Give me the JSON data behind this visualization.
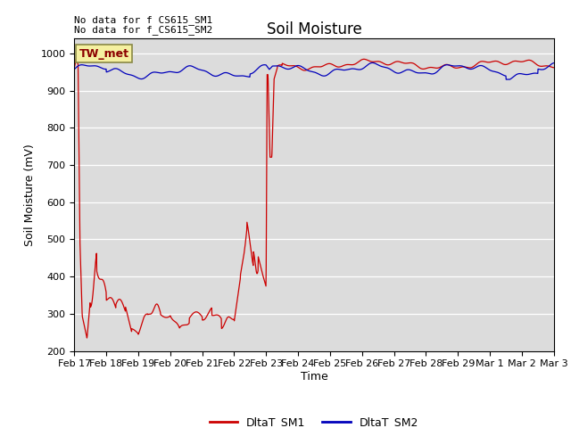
{
  "title": "Soil Moisture",
  "xlabel": "Time",
  "ylabel": "Soil Moisture (mV)",
  "ylim": [
    200,
    1040
  ],
  "yticks": [
    200,
    300,
    400,
    500,
    600,
    700,
    800,
    900,
    1000
  ],
  "bg_color": "#dcdcdc",
  "line1_color": "#cc0000",
  "line2_color": "#0000bb",
  "line1_label": "DltaT_SM1",
  "line2_label": "DltaT_SM2",
  "no_data_text1": "No data for f CS615_SM1",
  "no_data_text2": "No data for f̲CS615̲SM2",
  "tw_met_label": "TW_met",
  "date_labels": [
    "Feb 17",
    "Feb 18",
    "Feb 19",
    "Feb 20",
    "Feb 21",
    "Feb 22",
    "Feb 23",
    "Feb 24",
    "Feb 25",
    "Feb 26",
    "Feb 27",
    "Feb 28",
    "Feb 29",
    "Mar 1",
    "Mar 2",
    "Mar 3"
  ],
  "title_fontsize": 12,
  "axis_fontsize": 9,
  "tick_fontsize": 8,
  "legend_fontsize": 9
}
